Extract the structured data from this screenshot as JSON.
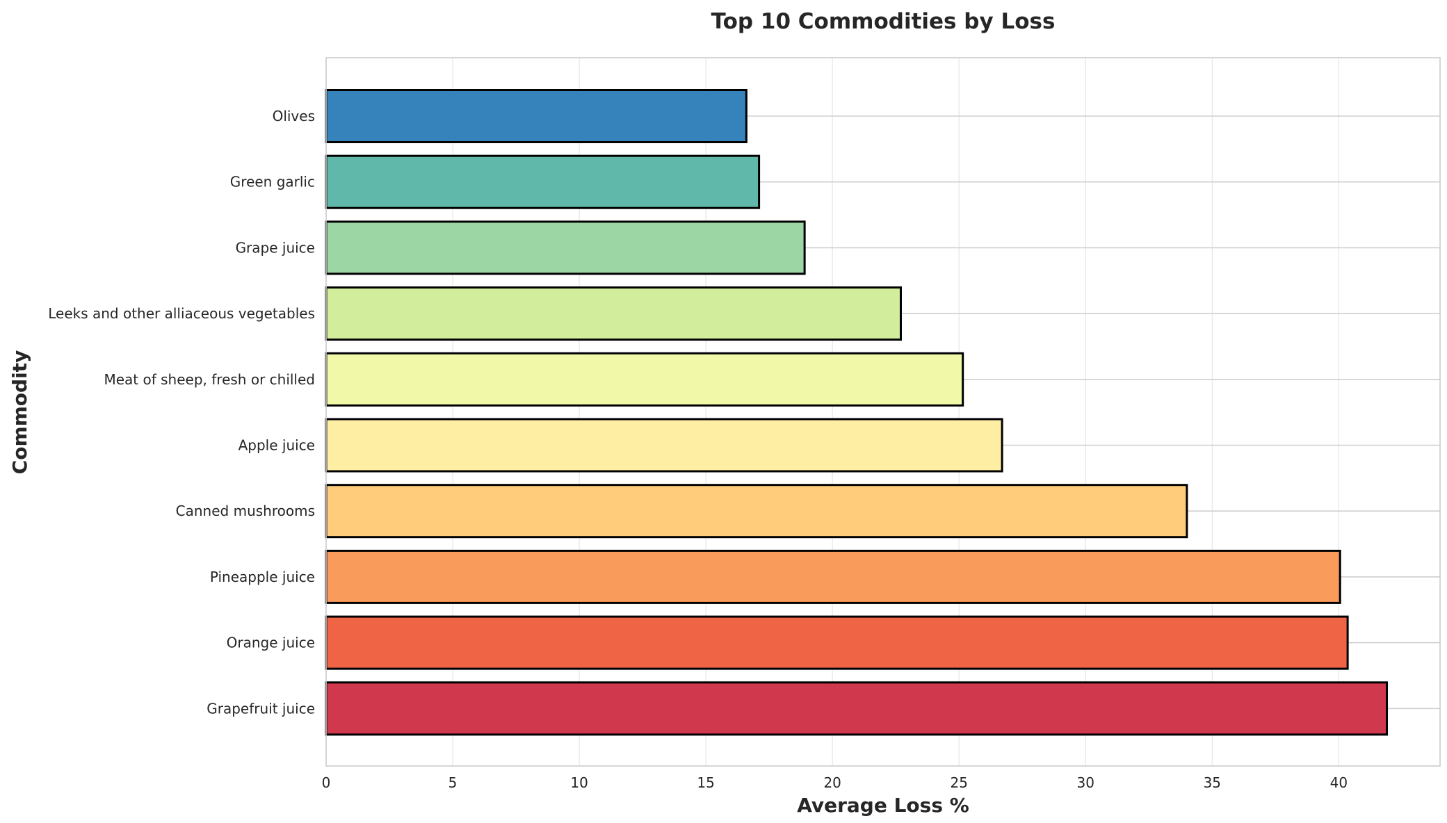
{
  "chart_data": {
    "type": "bar",
    "orientation": "horizontal",
    "title": "Top 10 Commodities by Loss",
    "xlabel": "Average Loss %",
    "ylabel": "Commodity",
    "xlim": [
      0,
      44
    ],
    "xticks": [
      0,
      5,
      10,
      15,
      20,
      25,
      30,
      35,
      40
    ],
    "grid": true,
    "categories": [
      "Olives",
      "Green garlic",
      "Grape juice",
      "Leeks and other alliaceous vegetables",
      "Meat of sheep, fresh or chilled",
      "Apple juice",
      "Canned mushrooms",
      "Pineapple juice",
      "Orange juice",
      "Grapefruit juice"
    ],
    "values": [
      16.6,
      17.1,
      18.9,
      22.7,
      25.15,
      26.7,
      34.0,
      40.05,
      40.35,
      41.9
    ],
    "colors": [
      "#3682ba",
      "#5fb8aa",
      "#9bd6a4",
      "#d2ed9b",
      "#f1f9a9",
      "#feeea4",
      "#fecc7b",
      "#f99b5a",
      "#ee6445",
      "#d0384d"
    ]
  }
}
